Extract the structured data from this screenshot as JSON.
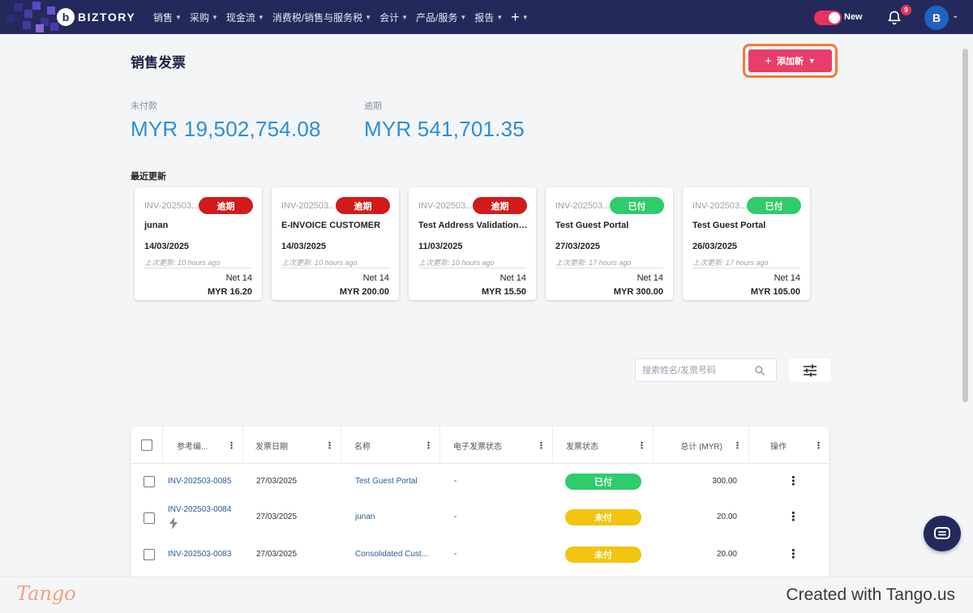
{
  "nav": {
    "brand": "BIZTORY",
    "brand_initial": "b",
    "menu": [
      "销售",
      "采购",
      "现金流",
      "消费税/销售与服务税",
      "会计",
      "产品/服务",
      "报告"
    ],
    "plus": "+",
    "toggle_label": "New",
    "notifications": "9",
    "avatar": "B"
  },
  "page": {
    "title": "销售发票",
    "add_button": "添加新",
    "unpaid_label": "未付款",
    "unpaid_value": "MYR 19,502,754.08",
    "overdue_label": "逾期",
    "overdue_value": "MYR 541,701.35",
    "recent_label": "最近更新"
  },
  "cards": [
    {
      "ref": "INV-202503...",
      "status": "逾期",
      "status_type": "overdue",
      "name": "junan",
      "date": "14/03/2025",
      "updated": "上次更新: 10 hours ago",
      "terms": "Net 14",
      "amount": "MYR 16.20"
    },
    {
      "ref": "INV-202503...",
      "status": "逾期",
      "status_type": "overdue",
      "name": "E-INVOICE CUSTOMER",
      "date": "14/03/2025",
      "updated": "上次更新: 10 hours ago",
      "terms": "Net 14",
      "amount": "MYR 200.00"
    },
    {
      "ref": "INV-202503...",
      "status": "逾期",
      "status_type": "overdue",
      "name": "Test Address Validation (...",
      "date": "11/03/2025",
      "updated": "上次更新: 10 hours ago",
      "terms": "Net 14",
      "amount": "MYR 15.50"
    },
    {
      "ref": "INV-202503...",
      "status": "已付",
      "status_type": "paid",
      "name": "Test Guest Portal",
      "date": "27/03/2025",
      "updated": "上次更新: 17 hours ago",
      "terms": "Net 14",
      "amount": "MYR 300.00"
    },
    {
      "ref": "INV-202503...",
      "status": "已付",
      "status_type": "paid",
      "name": "Test Guest Portal",
      "date": "26/03/2025",
      "updated": "上次更新: 17 hours ago",
      "terms": "Net 14",
      "amount": "MYR 105.00"
    }
  ],
  "search": {
    "placeholder": "搜索姓名/发票号码"
  },
  "table": {
    "headers": [
      "参考编...",
      "发票日期",
      "名称",
      "电子发票状态",
      "发票状态",
      "总计 (MYR)",
      "操作"
    ],
    "rows": [
      {
        "ref": "INV-202503-0085",
        "date": "27/03/2025",
        "name": "Test Guest Portal",
        "einvoice": "-",
        "status": "已付",
        "status_type": "paid",
        "total": "300.00"
      },
      {
        "ref": "INV-202503-0084",
        "date": "27/03/2025",
        "name": "junan",
        "einvoice": "-",
        "status": "未付",
        "status_type": "unpaid",
        "total": "20.00"
      },
      {
        "ref": "INV-202503-0083",
        "date": "27/03/2025",
        "name": "Consolidated Cust...",
        "einvoice": "-",
        "status": "未付",
        "status_type": "unpaid",
        "total": "20.00"
      }
    ]
  },
  "footer": {
    "logo": "Tango",
    "credit": "Created with Tango.us"
  },
  "colors": {
    "nav": "#232a5b",
    "accent": "#e93e6a",
    "link": "#2c8fd6",
    "overdue": "#d21a1a",
    "paid": "#2ecc6a",
    "unpaid": "#f2c40f"
  }
}
